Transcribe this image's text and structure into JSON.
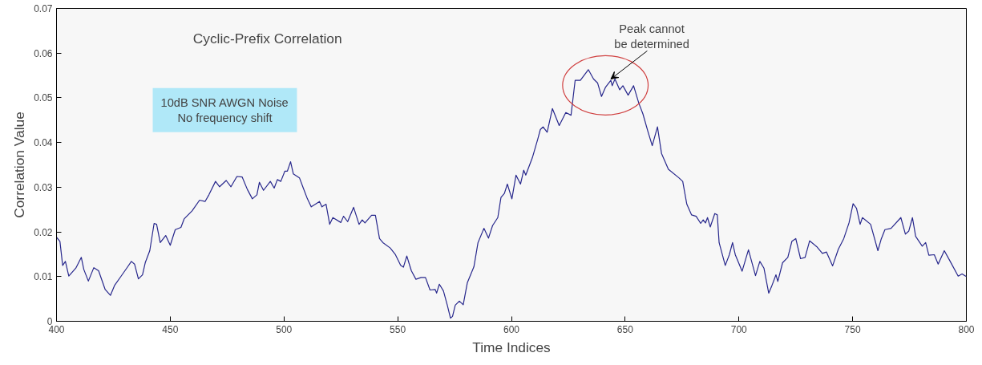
{
  "chart_data": {
    "type": "line",
    "xlabel": "Time Indices",
    "ylabel": "Correlation Value",
    "annotations": [
      "Cyclic-Prefix Correlation",
      "10dB SNR AWGN Noise\nNo frequency shift",
      {
        "text": "Peak cannot\nbe determined",
        "x": 643.7,
        "y": 0.0542
      }
    ],
    "xlim": [
      400,
      800
    ],
    "xticks": [
      400,
      450,
      500,
      550,
      600,
      650,
      700,
      750,
      800
    ],
    "ylim": [
      0,
      0.07
    ],
    "yticks": [
      0,
      0.01,
      0.02,
      0.03,
      0.04,
      0.05,
      0.06,
      0.07
    ],
    "grid": false,
    "marker": "none",
    "line_style": "solid",
    "series": [
      {
        "color": "#27278c",
        "x": [
          400,
          401.5,
          402.7,
          403.9,
          405.4,
          408.5,
          410.9,
          412,
          414,
          416.4,
          418.5,
          421.4,
          423.7,
          425.5,
          428.4,
          431.3,
          432.9,
          434.3,
          436,
          437.8,
          439,
          441,
          442.9,
          444,
          445.6,
          448,
          450,
          452.2,
          454.7,
          456.1,
          459.6,
          462.9,
          465.3,
          467,
          469.9,
          471.7,
          474.6,
          476.7,
          479.3,
          481.6,
          483.9,
          486.1,
          488.1,
          489.2,
          491,
          494,
          495.7,
          497.1,
          498.6,
          500.4,
          501.5,
          502.9,
          504.1,
          506.8,
          508.5,
          510.3,
          512,
          515.6,
          516.7,
          518.5,
          520.1,
          521.5,
          525,
          526.2,
          528,
          530.6,
          533,
          534.4,
          535.6,
          538.5,
          540.2,
          542,
          543.5,
          546.7,
          549,
          551.3,
          552.5,
          554,
          556,
          558,
          560.3,
          562.2,
          564.2,
          566.5,
          567.1,
          568.3,
          570.1,
          571.8,
          573.2,
          574.1,
          575.3,
          577.1,
          578.8,
          580.6,
          583.5,
          585.3,
          587.9,
          589.9,
          591.7,
          594,
          595.4,
          596.9,
          598.2,
          600.2,
          602,
          604,
          605.4,
          606.3,
          609.2,
          611.6,
          612.7,
          613.9,
          615.7,
          618,
          621,
          623.9,
          626.2,
          628,
          630.3,
          633.8,
          636.1,
          637.9,
          639.6,
          641.4,
          643.7,
          644.3,
          645.5,
          647.6,
          649,
          651.3,
          653.7,
          656,
          657.8,
          660.1,
          661.9,
          664.2,
          666,
          669,
          673.6,
          675.3,
          677.1,
          679.2,
          681.2,
          683.2,
          684.3,
          685.3,
          686.2,
          687.4,
          689.4,
          690.5,
          691.3,
          694,
          695.8,
          697.2,
          698.4,
          701.4,
          704.2,
          707.3,
          709.2,
          711,
          713.1,
          714.3,
          716.3,
          717.1,
          719.2,
          721.5,
          723.3,
          725,
          727.1,
          729.1,
          731.1,
          734.2,
          736.7,
          738.5,
          741.2,
          743.7,
          746.1,
          748.4,
          750.2,
          751.7,
          753.3,
          754.3,
          757.9,
          761.1,
          762.5,
          764.2,
          766.9,
          771.2,
          773.2,
          774.7,
          776.3,
          777.7,
          780.6,
          782.1,
          783.5,
          785.9,
          787.6,
          790.3,
          792.9,
          796.4,
          798.1,
          800
        ],
        "values": [
          0.0188,
          0.0179,
          0.0125,
          0.0134,
          0.0101,
          0.0119,
          0.0143,
          0.0116,
          0.009,
          0.012,
          0.0113,
          0.0071,
          0.0058,
          0.008,
          0.0101,
          0.0122,
          0.0134,
          0.0128,
          0.0095,
          0.0104,
          0.0131,
          0.0158,
          0.0219,
          0.0217,
          0.0176,
          0.0192,
          0.017,
          0.0205,
          0.021,
          0.0229,
          0.0247,
          0.0271,
          0.0268,
          0.0283,
          0.0313,
          0.0301,
          0.0315,
          0.0301,
          0.0324,
          0.0323,
          0.0295,
          0.0274,
          0.0283,
          0.0311,
          0.0293,
          0.0313,
          0.0298,
          0.0317,
          0.0313,
          0.0336,
          0.0336,
          0.0357,
          0.033,
          0.0321,
          0.0298,
          0.0274,
          0.0256,
          0.0268,
          0.0256,
          0.0262,
          0.0217,
          0.0232,
          0.0221,
          0.0235,
          0.0223,
          0.0255,
          0.0217,
          0.0227,
          0.022,
          0.0237,
          0.0237,
          0.0185,
          0.0176,
          0.0164,
          0.0149,
          0.0125,
          0.0121,
          0.0146,
          0.0113,
          0.0094,
          0.0098,
          0.0098,
          0.007,
          0.0071,
          0.0063,
          0.0083,
          0.0068,
          0.0036,
          0.0007,
          0.0011,
          0.0036,
          0.0045,
          0.0037,
          0.0086,
          0.0122,
          0.0176,
          0.0208,
          0.0186,
          0.0214,
          0.0232,
          0.0277,
          0.0286,
          0.0307,
          0.0274,
          0.0327,
          0.0307,
          0.0338,
          0.0327,
          0.0366,
          0.0408,
          0.0429,
          0.0435,
          0.0423,
          0.0476,
          0.0438,
          0.0467,
          0.0461,
          0.0539,
          0.0539,
          0.0563,
          0.0542,
          0.0533,
          0.0503,
          0.0524,
          0.0539,
          0.0527,
          0.0542,
          0.0518,
          0.0527,
          0.0506,
          0.0527,
          0.0488,
          0.0464,
          0.0423,
          0.0393,
          0.0435,
          0.0375,
          0.034,
          0.0321,
          0.0313,
          0.0262,
          0.0238,
          0.0235,
          0.0219,
          0.0227,
          0.022,
          0.0232,
          0.0211,
          0.0241,
          0.0238,
          0.0176,
          0.0125,
          0.0149,
          0.0176,
          0.0149,
          0.0112,
          0.016,
          0.0102,
          0.0134,
          0.0119,
          0.0063,
          0.0077,
          0.0104,
          0.0089,
          0.0131,
          0.0143,
          0.0179,
          0.0185,
          0.014,
          0.0143,
          0.018,
          0.0167,
          0.0152,
          0.0155,
          0.0124,
          0.0161,
          0.0185,
          0.022,
          0.0263,
          0.0253,
          0.0217,
          0.0232,
          0.0217,
          0.0158,
          0.0183,
          0.0205,
          0.0208,
          0.0232,
          0.0195,
          0.0202,
          0.0232,
          0.019,
          0.0168,
          0.0176,
          0.0148,
          0.0149,
          0.0128,
          0.0158,
          0.0134,
          0.0101,
          0.0106,
          0.01
        ]
      }
    ]
  }
}
